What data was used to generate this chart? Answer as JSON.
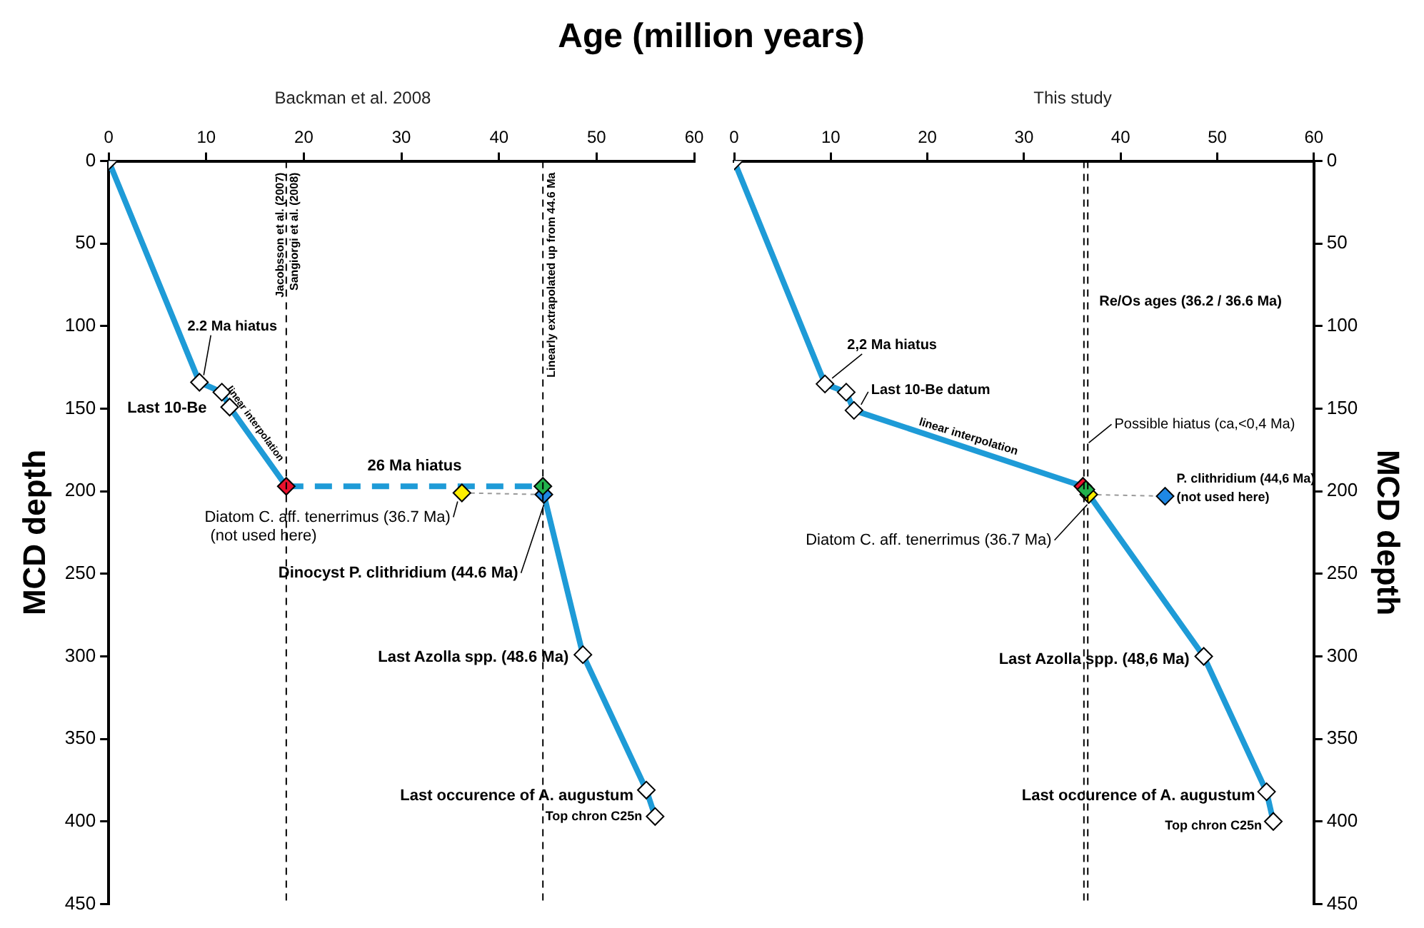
{
  "chart_data": [
    {
      "type": "line",
      "title": "Backman et al. 2008",
      "xlabel": "Age (million years)",
      "ylabel": "MCD depth",
      "xlim": [
        0,
        60
      ],
      "xticks": [
        0,
        10,
        20,
        30,
        40,
        50,
        60
      ],
      "ylim": [
        450,
        0
      ],
      "yticks": [
        0,
        50,
        100,
        150,
        200,
        250,
        300,
        350,
        400,
        450
      ],
      "marker": "diamond",
      "series": [
        {
          "type": "line",
          "x": [
            18.2,
            44.5
          ],
          "values": [
            197,
            197
          ],
          "color": "#1e9bd7",
          "line_style": "dashed",
          "marker": "none"
        },
        {
          "type": "line",
          "x": [
            36.2,
            44.6
          ],
          "values": [
            201,
            202
          ],
          "color": "#9a9a9a",
          "line_style": "dotted",
          "marker": "none"
        },
        {
          "type": "line",
          "x": [
            0,
            9.3,
            11.6,
            12.4,
            18.2
          ],
          "values": [
            0,
            134,
            140,
            149,
            197
          ],
          "color": "#1e9bd7",
          "colors": [
            "#ffffff",
            "#ffffff",
            "#ffffff",
            "#ffffff",
            "#e8112d"
          ]
        },
        {
          "type": "line",
          "x": [
            44.6,
            48.6,
            55.1,
            56
          ],
          "values": [
            202,
            299,
            381,
            397
          ],
          "color": "#1e9bd7",
          "colors": [
            "#1e88e5",
            "#ffffff",
            "#ffffff",
            "#ffffff"
          ]
        },
        {
          "type": "scatter",
          "x": [
            44.5
          ],
          "values": [
            197
          ],
          "color": "#22b14c"
        },
        {
          "type": "scatter",
          "x": [
            36.2
          ],
          "values": [
            201
          ],
          "color": "#ffee00"
        }
      ],
      "ref_lines": [
        {
          "axis": "x",
          "value": 18.2,
          "label": "Jacobsson et al. (2007)\nSangiorgi et al. (2008)",
          "color": "#000000",
          "line_style": "dashed"
        },
        {
          "axis": "x",
          "value": 44.5,
          "label": "Linearly extrapolated up from 44.6 Ma",
          "color": "#000000",
          "line_style": "dashed"
        }
      ],
      "annotations": [
        {
          "text": "2.2 Ma hiatus",
          "x": 9.3,
          "y": 134
        },
        {
          "text": "Last 10-Be",
          "x": 12.4,
          "y": 149
        },
        {
          "text": "linear interpolation",
          "x": 15.3,
          "y": 173
        },
        {
          "text": "26 Ma hiatus",
          "x": 31.35,
          "y": 197
        },
        {
          "text": "Diatom C. aff. tenerrimus (36.7 Ma)\n(not used here)",
          "x": 36.2,
          "y": 201
        },
        {
          "text": "Dinocyst P. clithridium (44.6 Ma)",
          "x": 44.6,
          "y": 202
        },
        {
          "text": "Last Azolla spp. (48.6 Ma)",
          "x": 48.6,
          "y": 299
        },
        {
          "text": "Last occurence of A. augustum",
          "x": 55.1,
          "y": 381
        },
        {
          "text": "Top chron C25n",
          "x": 56,
          "y": 397
        }
      ]
    },
    {
      "type": "line",
      "title": "This study",
      "ylabel": "MCD depth",
      "xlim": [
        0,
        60
      ],
      "xticks": [
        0,
        10,
        20,
        30,
        40,
        50,
        60
      ],
      "ylim": [
        450,
        0
      ],
      "yticks": [
        0,
        50,
        100,
        150,
        200,
        250,
        300,
        350,
        400,
        450
      ],
      "marker": "diamond",
      "series": [
        {
          "type": "line",
          "x": [
            36.7,
            44.6
          ],
          "values": [
            202,
            203
          ],
          "color": "#9a9a9a",
          "line_style": "dotted",
          "marker": "none"
        },
        {
          "type": "line",
          "x": [
            0,
            9.4,
            11.6,
            12.4,
            36.1,
            36.7,
            48.6,
            55.1,
            55.8
          ],
          "values": [
            0,
            135,
            140,
            151,
            197,
            202,
            300,
            382,
            400
          ],
          "color": "#1e9bd7",
          "colors": [
            "#ffffff",
            "#ffffff",
            "#ffffff",
            "#ffffff",
            "#e8112d",
            "#ffee00",
            "#ffffff",
            "#ffffff",
            "#ffffff"
          ]
        },
        {
          "type": "scatter",
          "x": [
            36.4
          ],
          "values": [
            199
          ],
          "color": "#22b14c"
        },
        {
          "type": "scatter",
          "x": [
            44.6
          ],
          "values": [
            203
          ],
          "color": "#1e88e5"
        }
      ],
      "ref_lines": [
        {
          "axis": "x",
          "value": 36.2,
          "color": "#000000",
          "line_style": "dashed"
        },
        {
          "axis": "x",
          "value": 36.6,
          "color": "#000000",
          "line_style": "dashed"
        }
      ],
      "annotations": [
        {
          "text": "2,2 Ma hiatus",
          "x": 9.4,
          "y": 135
        },
        {
          "text": "Last 10-Be datum",
          "x": 12.4,
          "y": 151
        },
        {
          "text": "linear interpolation",
          "x": 24.25,
          "y": 174
        },
        {
          "text": "Re/Os ages (36.2 / 36.6 Ma)",
          "x": 36.6,
          "y": 85
        },
        {
          "text": "Possible hiatus (ca,<0,4 Ma)",
          "x": 36.4,
          "y": 175
        },
        {
          "text": "P. clithridium (44,6 Ma)\n(not used here)",
          "x": 44.6,
          "y": 203
        },
        {
          "text": "Diatom C. aff. tenerrimus (36.7 Ma)",
          "x": 36.7,
          "y": 202
        },
        {
          "text": "Last Azolla spp. (48,6 Ma)",
          "x": 48.6,
          "y": 300
        },
        {
          "text": "Last occurence of A. augustum",
          "x": 55.1,
          "y": 382
        },
        {
          "text": "Top chron C25n",
          "x": 55.8,
          "y": 400
        }
      ]
    }
  ]
}
